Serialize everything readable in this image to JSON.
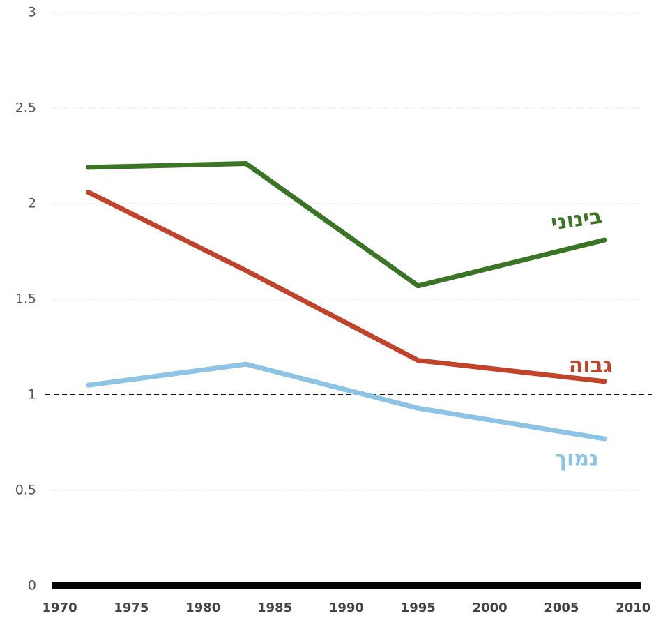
{
  "chart_data": {
    "type": "line",
    "x": [
      1972,
      1983,
      1995,
      2008
    ],
    "series": [
      {
        "name": "בינוני",
        "color": "#3a7525",
        "values": [
          2.19,
          2.21,
          1.57,
          1.81
        ]
      },
      {
        "name": "גבוה",
        "color": "#c0432a",
        "values": [
          2.06,
          1.65,
          1.18,
          1.07
        ]
      },
      {
        "name": "נמוך",
        "color": "#8dc3e4",
        "values": [
          1.05,
          1.16,
          0.93,
          0.77
        ]
      }
    ],
    "xlim": [
      1969,
      2011.3
    ],
    "xticks": [
      1970,
      1975,
      1980,
      1985,
      1990,
      1995,
      2000,
      2005,
      2010
    ],
    "ylim": [
      0,
      3
    ],
    "yticks": [
      0,
      0.5,
      1,
      1.5,
      2,
      2.5,
      3
    ],
    "reference_line": 1,
    "grid": true
  }
}
